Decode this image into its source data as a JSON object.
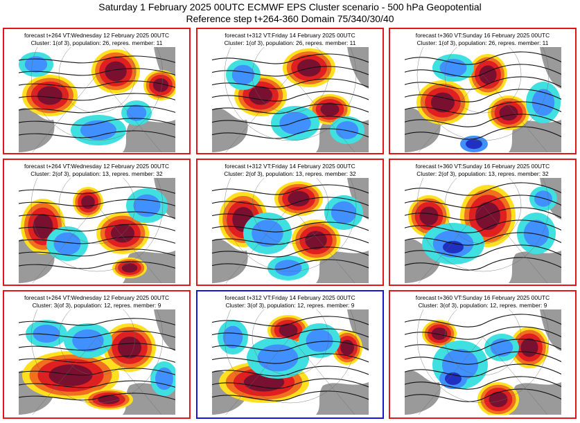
{
  "header": {
    "title": "Saturday 1 February 2025 00UTC ECMWF EPS Cluster scenario - 500 hPa Geopotential",
    "subtitle": "Reference step t+264-360 Domain 75/340/30/40"
  },
  "colors": {
    "frame": "#e01515",
    "selected_frame": "#1515d0",
    "ridge_dark": "#7a1030",
    "ridge_red": "#e02020",
    "ridge_orange": "#f07020",
    "ridge_yellow": "#ffe020",
    "trough_cyan": "#40e0e0",
    "trough_blue": "#4090ff",
    "trough_deep": "#2030c0",
    "land_grey": "#9a9a9a"
  },
  "panels": [
    {
      "line1": "forecast t+264 VT:Wednesday 12 February 2025 00UTC",
      "line2": "Cluster: 1(of 3), population: 26, repres. member: 11"
    },
    {
      "line1": "forecast t+312 VT:Friday 14 February 2025 00UTC",
      "line2": "Cluster: 1(of 3), population: 26, repres. member: 11"
    },
    {
      "line1": "forecast t+360 VT:Sunday 16 February 2025 00UTC",
      "line2": "Cluster: 1(of 3), population: 26, repres. member: 11"
    },
    {
      "line1": "forecast t+264 VT:Wednesday 12 February 2025 00UTC",
      "line2": "Cluster: 2(of 3), population: 13, repres. member: 32"
    },
    {
      "line1": "forecast t+312 VT:Friday 14 February 2025 00UTC",
      "line2": "Cluster: 2(of 3), population: 13, repres. member: 32"
    },
    {
      "line1": "forecast t+360 VT:Sunday 16 February 2025 00UTC",
      "line2": "Cluster: 2(of 3), population: 13, repres. member: 32"
    },
    {
      "line1": "forecast t+264 VT:Wednesday 12 February 2025 00UTC",
      "line2": "Cluster: 3(of 3), population: 12, repres. member: 9"
    },
    {
      "line1": "forecast t+312 VT:Friday 14 February 2025 00UTC",
      "line2": "Cluster: 3(of 3), population: 12, repres. member: 9"
    },
    {
      "line1": "forecast t+360 VT:Sunday 16 February 2025 00UTC",
      "line2": "Cluster: 3(of 3), population: 12, repres. member: 9"
    }
  ]
}
